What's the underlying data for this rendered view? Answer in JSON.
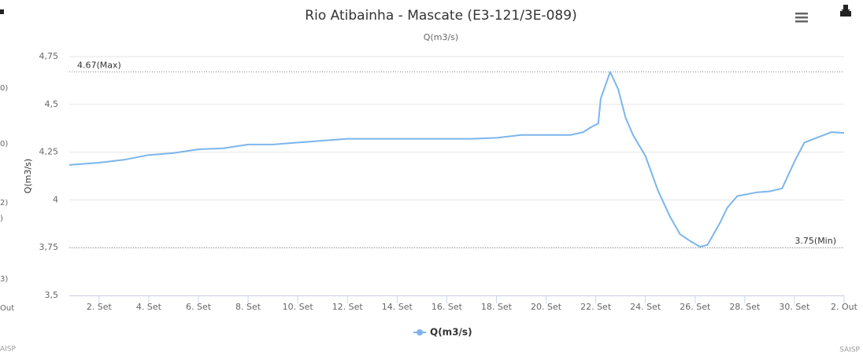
{
  "chart_data": {
    "type": "line",
    "title": "Rio Atibainha - Mascate (E3-121/3E-089)",
    "subtitle": "Q(m3/s)",
    "y_label": "Q(m3/s)",
    "credits": "SAISP",
    "left_fragments": [
      "0)",
      "0)",
      "2)",
      ")",
      "3)",
      "Out",
      "AISP"
    ],
    "x": [
      0.8,
      2,
      3,
      4,
      5,
      6,
      7,
      8,
      9,
      10,
      11,
      12,
      13,
      14,
      15,
      16,
      17,
      18,
      19,
      20,
      21,
      21.5,
      21.8,
      22.1,
      22.2,
      22.58,
      22.9,
      23.2,
      23.5,
      24,
      24.5,
      25,
      25.4,
      25.8,
      26.2,
      26.5,
      27,
      27.3,
      27.7,
      28.5,
      29,
      29.5,
      30,
      30.4,
      31,
      31.5,
      32
    ],
    "series": [
      {
        "name": "Q(m3/s)",
        "color": "#7cb5ec",
        "values": [
          4.183,
          4.195,
          4.21,
          4.235,
          4.245,
          4.265,
          4.27,
          4.29,
          4.29,
          4.3,
          4.31,
          4.32,
          4.32,
          4.32,
          4.32,
          4.32,
          4.32,
          4.325,
          4.34,
          4.34,
          4.34,
          4.355,
          4.38,
          4.4,
          4.53,
          4.67,
          4.58,
          4.43,
          4.34,
          4.23,
          4.05,
          3.91,
          3.82,
          3.785,
          3.755,
          3.765,
          3.88,
          3.96,
          4.02,
          4.04,
          4.045,
          4.06,
          4.2,
          4.3,
          4.33,
          4.355,
          4.35
        ]
      }
    ],
    "xlim": [
      0.8,
      32
    ],
    "xticks": [
      {
        "value": 2,
        "label": "2. Set"
      },
      {
        "value": 4,
        "label": "4. Set"
      },
      {
        "value": 6,
        "label": "6. Set"
      },
      {
        "value": 8,
        "label": "8. Set"
      },
      {
        "value": 10,
        "label": "10. Set"
      },
      {
        "value": 12,
        "label": "12. Set"
      },
      {
        "value": 14,
        "label": "14. Set"
      },
      {
        "value": 16,
        "label": "16. Set"
      },
      {
        "value": 18,
        "label": "18. Set"
      },
      {
        "value": 20,
        "label": "20. Set"
      },
      {
        "value": 22,
        "label": "22. Set"
      },
      {
        "value": 24,
        "label": "24. Set"
      },
      {
        "value": 26,
        "label": "26. Set"
      },
      {
        "value": 28,
        "label": "28. Set"
      },
      {
        "value": 30,
        "label": "30. Set"
      },
      {
        "value": 32,
        "label": "2. Out"
      }
    ],
    "ylim": [
      3.5,
      4.75
    ],
    "yticks": [
      {
        "value": 3.5,
        "label": "3,5"
      },
      {
        "value": 3.75,
        "label": "3,75"
      },
      4,
      {
        "value": 4.25,
        "label": "4,25"
      },
      {
        "value": 4.5,
        "label": "4,5"
      },
      {
        "value": 4.75,
        "label": "4,75"
      }
    ],
    "grid": true,
    "annotations": [
      {
        "value": 4.67,
        "label": "4.67(Max)"
      },
      {
        "value": 3.75,
        "label": "3.75(Min)"
      }
    ],
    "legend": "bottom"
  }
}
